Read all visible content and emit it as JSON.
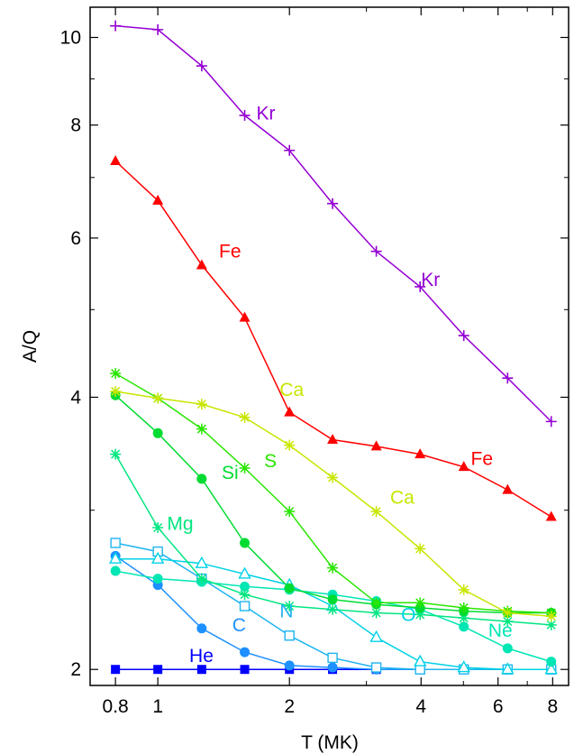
{
  "chart_data": {
    "type": "line",
    "title": "",
    "xlabel": "T (MK)",
    "ylabel": "A/Q",
    "x_scale": "log",
    "y_scale": "log",
    "xlim": [
      0.7,
      8.7
    ],
    "ylim": [
      1.92,
      10.8
    ],
    "x_ticks": [
      {
        "value": 0.8,
        "label": "0.8"
      },
      {
        "value": 1,
        "label": "1"
      },
      {
        "value": 2,
        "label": "2"
      },
      {
        "value": 4,
        "label": "4"
      },
      {
        "value": 6,
        "label": "6"
      },
      {
        "value": 8,
        "label": "8"
      }
    ],
    "x_minor_ticks": [
      3,
      5,
      7
    ],
    "y_ticks": [
      {
        "value": 2,
        "label": "2"
      },
      {
        "value": 4,
        "label": "4"
      },
      {
        "value": 6,
        "label": "6"
      },
      {
        "value": 8,
        "label": "8"
      },
      {
        "value": 10,
        "label": "10"
      }
    ],
    "y_minor_ticks": [
      3,
      5,
      7,
      9
    ],
    "grid": false,
    "legend": "none",
    "x": [
      0.8,
      1.0,
      1.26,
      1.58,
      2.0,
      2.51,
      3.16,
      3.98,
      5.01,
      6.31,
      7.94
    ],
    "series": [
      {
        "name": "He",
        "color": "#0000ff",
        "marker": "square-filled",
        "values": [
          2.0,
          2.0,
          2.0,
          2.0,
          2.0,
          2.0,
          2.0,
          2.0,
          2.0,
          2.0,
          2.0
        ],
        "labels": [
          {
            "text": "He",
            "x": 1.18,
            "y": 2.07
          }
        ]
      },
      {
        "name": "C",
        "color": "#1e90ff",
        "marker": "circle-filled",
        "values": [
          2.67,
          2.48,
          2.22,
          2.09,
          2.02,
          2.01,
          2.0,
          2.0,
          2.0,
          2.0,
          2.0
        ],
        "labels": [
          {
            "text": "C",
            "x": 1.48,
            "y": 2.24
          }
        ]
      },
      {
        "name": "N",
        "color": "#1eb4f0",
        "marker": "square-open",
        "values": [
          2.76,
          2.7,
          2.52,
          2.35,
          2.18,
          2.06,
          2.01,
          2.0,
          2.0,
          2.0,
          2.0
        ],
        "labels": [
          {
            "text": "N",
            "x": 1.9,
            "y": 2.32
          }
        ]
      },
      {
        "name": "O",
        "color": "#00d2e6",
        "marker": "triangle-open",
        "values": [
          2.65,
          2.65,
          2.62,
          2.55,
          2.48,
          2.35,
          2.17,
          2.04,
          2.01,
          2.0,
          2.0
        ],
        "labels": [
          {
            "text": "O",
            "x": 3.6,
            "y": 2.3
          }
        ]
      },
      {
        "name": "Ne",
        "color": "#00e6b4",
        "marker": "circle-filled",
        "values": [
          2.57,
          2.52,
          2.5,
          2.47,
          2.45,
          2.42,
          2.38,
          2.33,
          2.23,
          2.11,
          2.04
        ],
        "labels": [
          {
            "text": "Ne",
            "x": 5.7,
            "y": 2.21
          }
        ]
      },
      {
        "name": "Mg",
        "color": "#00e680",
        "marker": "asterisk",
        "values": [
          3.46,
          2.87,
          2.52,
          2.42,
          2.35,
          2.33,
          2.31,
          2.3,
          2.28,
          2.26,
          2.24
        ],
        "labels": [
          {
            "text": "Mg",
            "x": 1.05,
            "y": 2.9
          }
        ]
      },
      {
        "name": "Si",
        "color": "#00dc32",
        "marker": "circle-filled",
        "values": [
          4.02,
          3.65,
          3.25,
          2.76,
          2.46,
          2.39,
          2.36,
          2.34,
          2.32,
          2.31,
          2.31
        ],
        "labels": [
          {
            "text": "Si",
            "x": 1.4,
            "y": 3.3
          }
        ]
      },
      {
        "name": "S",
        "color": "#28e600",
        "marker": "asterisk",
        "values": [
          4.25,
          3.99,
          3.69,
          3.34,
          2.99,
          2.59,
          2.37,
          2.37,
          2.34,
          2.32,
          2.31
        ],
        "labels": [
          {
            "text": "S",
            "x": 1.75,
            "y": 3.4
          }
        ]
      },
      {
        "name": "Ca",
        "color": "#c8e600",
        "marker": "asterisk",
        "values": [
          4.06,
          3.99,
          3.93,
          3.8,
          3.54,
          3.26,
          2.99,
          2.72,
          2.45,
          2.31,
          2.29
        ],
        "labels": [
          {
            "text": "Ca",
            "x": 1.9,
            "y": 4.08
          },
          {
            "text": "Ca",
            "x": 3.4,
            "y": 3.1
          }
        ]
      },
      {
        "name": "Fe",
        "color": "#ff0000",
        "marker": "triangle-filled",
        "values": [
          7.3,
          6.6,
          5.6,
          4.9,
          3.85,
          3.59,
          3.53,
          3.46,
          3.35,
          3.16,
          2.95
        ],
        "labels": [
          {
            "text": "Fe",
            "x": 1.38,
            "y": 5.8
          },
          {
            "text": "Fe",
            "x": 5.2,
            "y": 3.42
          }
        ]
      },
      {
        "name": "Kr",
        "color": "#9400d3",
        "marker": "plus",
        "values": [
          10.3,
          10.2,
          9.3,
          8.2,
          7.5,
          6.55,
          5.8,
          5.3,
          4.68,
          4.2,
          3.76
        ],
        "labels": [
          {
            "text": "Kr",
            "x": 1.68,
            "y": 8.25
          },
          {
            "text": "Kr",
            "x": 4.0,
            "y": 5.4
          }
        ]
      }
    ]
  }
}
